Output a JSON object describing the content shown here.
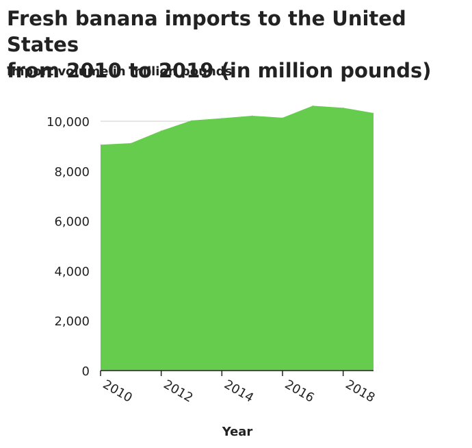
{
  "title_line1": "Fresh banana imports to the United States",
  "title_line2": "from 2010 to 2019 (in million pounds)",
  "chart_data": {
    "type": "area",
    "title": "Fresh banana imports to the United States from 2010 to 2019 (in million pounds)",
    "xlabel": "Year",
    "ylabel": "Import volume in million pounds",
    "x": [
      2010,
      2011,
      2012,
      2013,
      2014,
      2015,
      2016,
      2017,
      2018,
      2019
    ],
    "values": [
      9060,
      9120,
      9620,
      10030,
      10120,
      10220,
      10140,
      10620,
      10540,
      10330
    ],
    "xlim": [
      2010,
      2019
    ],
    "ylim": [
      0,
      10000
    ],
    "x_ticks": [
      2010,
      2012,
      2014,
      2016,
      2018
    ],
    "x_tick_labels": [
      "2010",
      "2012",
      "2014",
      "2016",
      "2018"
    ],
    "y_ticks": [
      0,
      2000,
      4000,
      6000,
      8000,
      10000
    ],
    "y_tick_labels": [
      "0",
      "2,000",
      "4,000",
      "6,000",
      "8,000",
      "10,000"
    ],
    "grid": "horizontal",
    "fill_color": "#66cc4d",
    "axis_color": "#222222",
    "grid_color": "#cccccc"
  }
}
